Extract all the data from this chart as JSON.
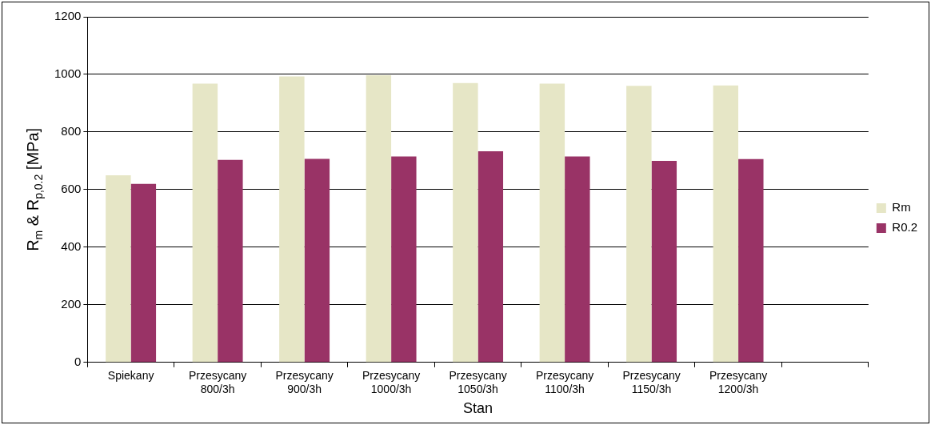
{
  "chart_data": {
    "type": "bar",
    "xlabel": "Stan",
    "ylabel": "R$_{m}$ & R$_{p,0.2}$ [MPa]",
    "categories": [
      "Spiekany",
      "Przesycany 800/3h",
      "Przesycany 900/3h",
      "Przesycany 1000/3h",
      "Przesycany 1050/3h",
      "Przesycany 1100/3h",
      "Przesycany 1150/3h",
      "Przesycany 1200/3h",
      null
    ],
    "series": [
      {
        "name": "Rm",
        "color": "#e6e6c6",
        "values": [
          650,
          968,
          993,
          997,
          970,
          968,
          960,
          962,
          null
        ]
      },
      {
        "name": "R0.2",
        "color": "#993366",
        "values": [
          620,
          703,
          707,
          715,
          733,
          715,
          700,
          706,
          null
        ]
      }
    ],
    "ylim": [
      0,
      1200
    ],
    "yticks": [
      0,
      200,
      400,
      600,
      800,
      1000,
      1200
    ],
    "grid": "y",
    "legend": "right"
  }
}
